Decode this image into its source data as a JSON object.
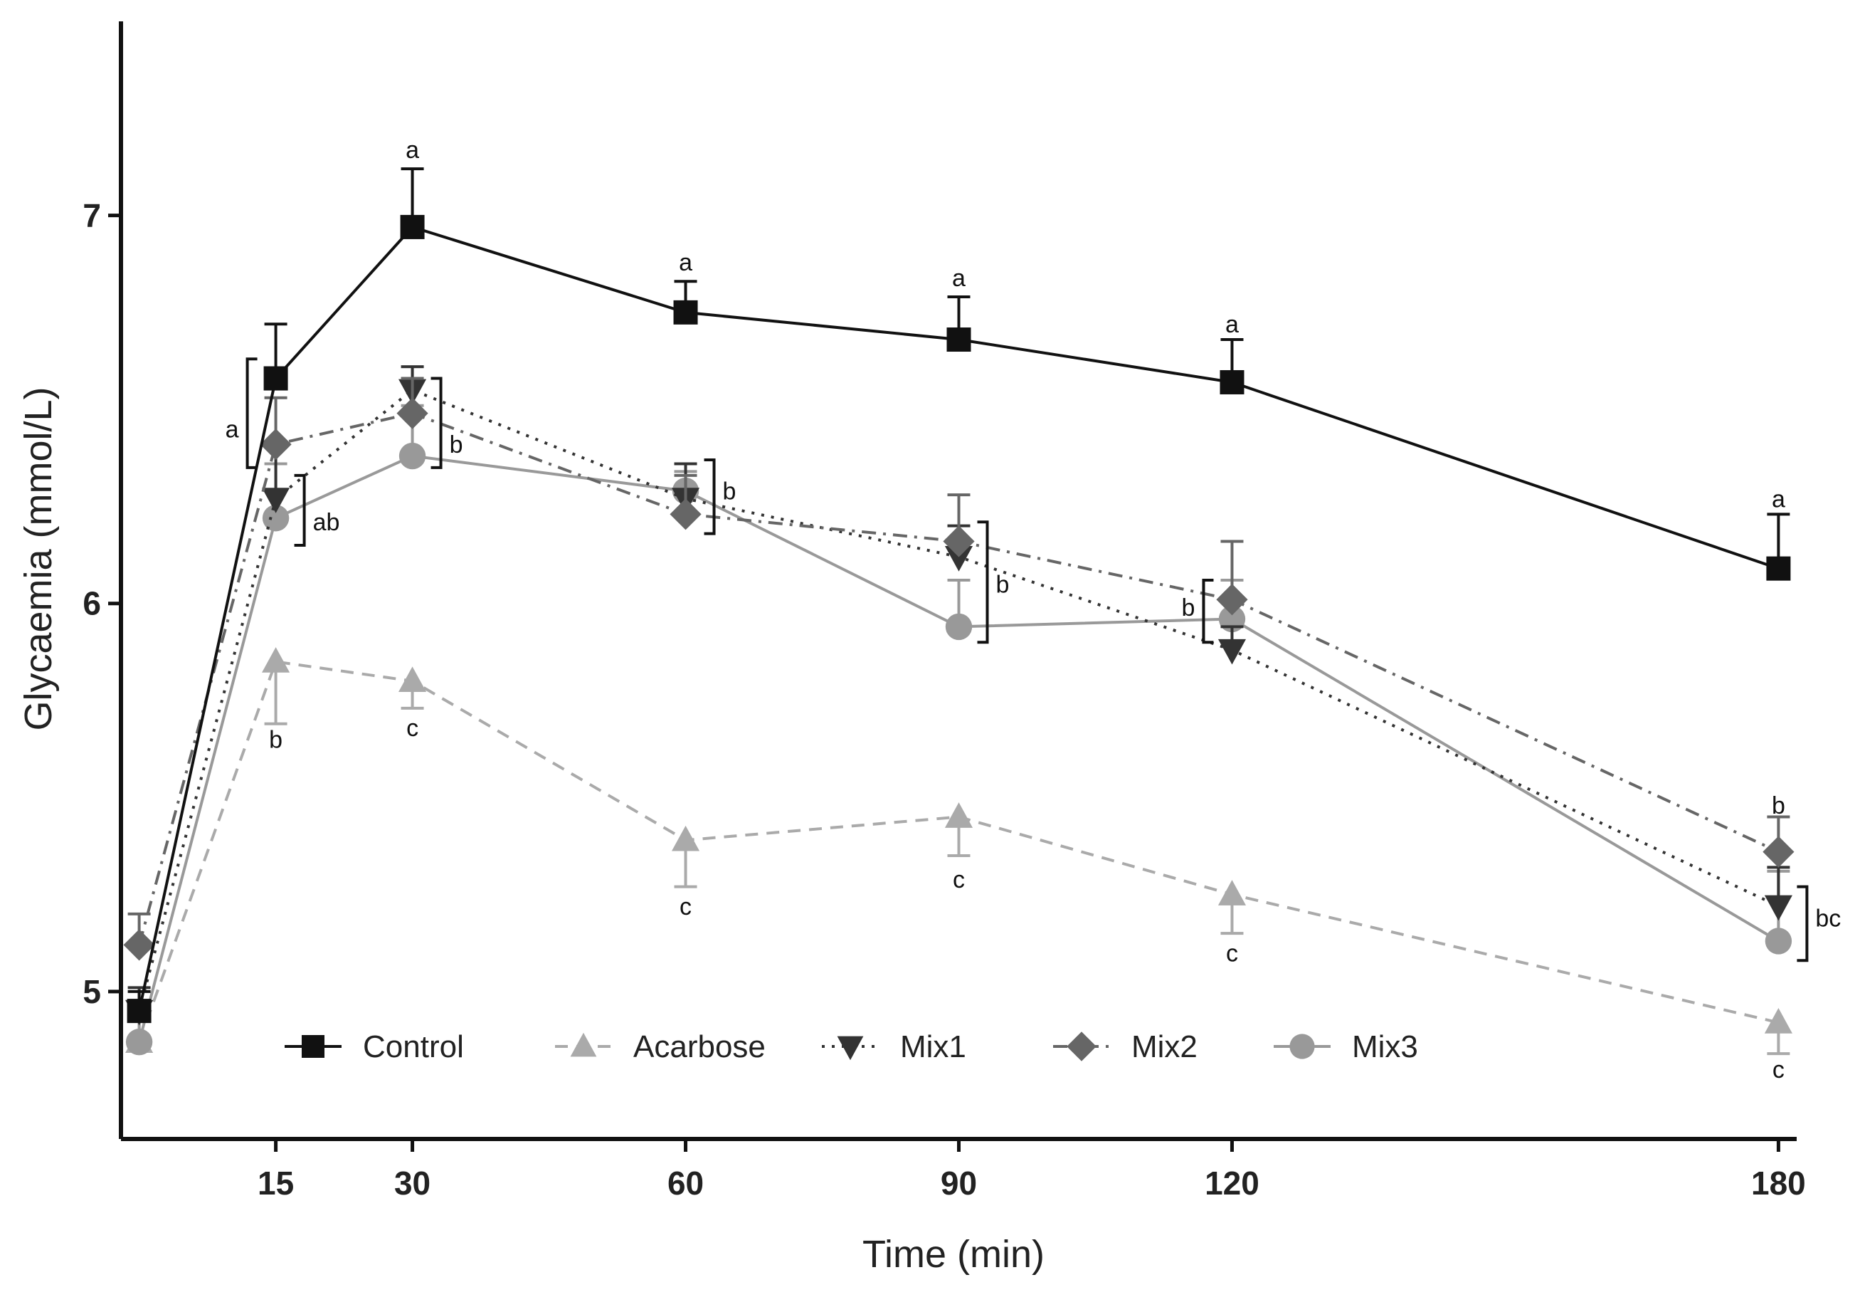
{
  "chart_data": {
    "type": "line",
    "title": "",
    "xlabel": "Time (min)",
    "ylabel": "Glycaemia (mmol/L)",
    "x": [
      0,
      15,
      30,
      60,
      90,
      120,
      180
    ],
    "xticks": [
      "15",
      "30",
      "60",
      "90",
      "120",
      "180"
    ],
    "xtick_values": [
      15,
      30,
      60,
      90,
      120,
      180
    ],
    "yticks": [
      "5",
      "6",
      "7"
    ],
    "ytick_values": [
      5,
      6,
      7
    ],
    "xlim": [
      -2,
      182
    ],
    "ylim": [
      4.62,
      7.5
    ],
    "grid": false,
    "legend_position": "bottom-center",
    "series": [
      {
        "name": "Control",
        "color": "#111111",
        "marker": "square",
        "dash": "none",
        "values": [
          4.95,
          6.58,
          6.97,
          6.75,
          6.68,
          6.57,
          6.09
        ],
        "errors": [
          0.05,
          0.14,
          0.15,
          0.08,
          0.11,
          0.11,
          0.14
        ]
      },
      {
        "name": "Acarbose",
        "color": "#aaaaaa",
        "marker": "triangle-up",
        "dash": "dashed",
        "values": [
          4.87,
          5.85,
          5.8,
          5.39,
          5.45,
          5.25,
          4.92
        ],
        "errors": [
          0.06,
          0.16,
          0.07,
          0.12,
          0.1,
          0.1,
          0.08
        ]
      },
      {
        "name": "Mix1",
        "color": "#333333",
        "marker": "triangle-down",
        "dash": "dotted",
        "values": [
          4.95,
          6.27,
          6.55,
          6.27,
          6.12,
          5.88,
          5.22
        ],
        "errors": [
          0.06,
          0.14,
          0.06,
          0.09,
          0.08,
          0.06,
          0.1
        ]
      },
      {
        "name": "Mix2",
        "color": "#666666",
        "marker": "diamond",
        "dash": "dashdot",
        "values": [
          5.12,
          6.41,
          6.49,
          6.23,
          6.16,
          6.01,
          5.36
        ],
        "errors": [
          0.08,
          0.12,
          0.09,
          0.1,
          0.12,
          0.15,
          0.09
        ]
      },
      {
        "name": "Mix3",
        "color": "#999999",
        "marker": "circle",
        "dash": "none",
        "values": [
          4.87,
          6.22,
          6.38,
          6.29,
          5.94,
          5.96,
          5.13
        ],
        "errors": [
          0.07,
          0.14,
          0.13,
          0.05,
          0.12,
          0.1,
          0.18
        ]
      }
    ],
    "annotations": [
      {
        "text": "a",
        "x": 30,
        "y": 7.17,
        "type": "label"
      },
      {
        "text": "a",
        "x": 60,
        "y": 6.88,
        "type": "label"
      },
      {
        "text": "a",
        "x": 90,
        "y": 6.84,
        "type": "label"
      },
      {
        "text": "a",
        "x": 120,
        "y": 6.72,
        "type": "label"
      },
      {
        "text": "a",
        "x": 180,
        "y": 6.27,
        "type": "label"
      },
      {
        "text": "a",
        "x": 15,
        "y": 6.45,
        "type": "bracket",
        "bracket": [
          6.63,
          6.35
        ],
        "side": "left"
      },
      {
        "text": "ab",
        "x": 15,
        "y": 6.21,
        "type": "bracket",
        "bracket": [
          6.33,
          6.15
        ],
        "side": "right"
      },
      {
        "text": "b",
        "x": 15,
        "y": 5.65,
        "type": "label"
      },
      {
        "text": "c",
        "x": 30,
        "y": 5.68,
        "type": "label"
      },
      {
        "text": "b",
        "x": 30,
        "y": 6.41,
        "type": "bracket",
        "bracket": [
          6.58,
          6.35
        ],
        "side": "right"
      },
      {
        "text": "b",
        "x": 60,
        "y": 6.29,
        "type": "bracket",
        "bracket": [
          6.37,
          6.18
        ],
        "side": "right"
      },
      {
        "text": "c",
        "x": 60,
        "y": 5.22,
        "type": "label"
      },
      {
        "text": "b",
        "x": 90,
        "y": 6.05,
        "type": "bracket",
        "bracket": [
          6.21,
          5.9
        ],
        "side": "right"
      },
      {
        "text": "c",
        "x": 90,
        "y": 5.29,
        "type": "label"
      },
      {
        "text": "b",
        "x": 120,
        "y": 5.99,
        "type": "bracket",
        "bracket": [
          6.06,
          5.9
        ],
        "side": "left"
      },
      {
        "text": "c",
        "x": 120,
        "y": 5.1,
        "type": "label"
      },
      {
        "text": "b",
        "x": 180,
        "y": 5.48,
        "type": "label"
      },
      {
        "text": "bc",
        "x": 180,
        "y": 5.19,
        "type": "bracket",
        "bracket": [
          5.27,
          5.08
        ],
        "side": "right"
      },
      {
        "text": "c",
        "x": 180,
        "y": 4.8,
        "type": "label"
      }
    ]
  }
}
